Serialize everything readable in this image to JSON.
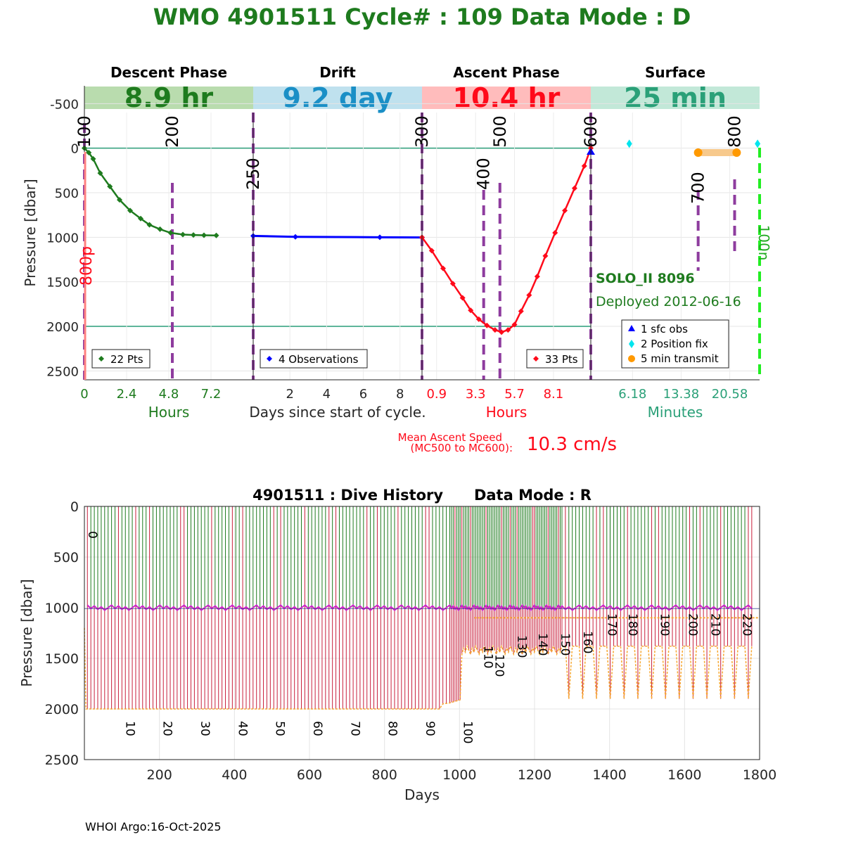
{
  "header": {
    "title": "WMO 4901511   Cycle# : 109   Data Mode : D"
  },
  "phases": [
    {
      "name": "Descent Phase",
      "duration": "8.9 hr",
      "color": "#1e7b1e",
      "bg": "#b9dcae"
    },
    {
      "name": "Drift",
      "duration": "9.2 day",
      "color": "#1a8fc6",
      "bg": "#bfe1ee"
    },
    {
      "name": "Ascent Phase",
      "duration": "10.4 hr",
      "color": "#ff0a1a",
      "bg": "#ffbcbc"
    },
    {
      "name": "Surface",
      "duration": "25 min",
      "color": "#2aa078",
      "bg": "#c2e8d8"
    }
  ],
  "float_info": {
    "model": "SOLO_II 8096",
    "deployed": "Deployed 2012-06-16"
  },
  "ascent_speed": {
    "label_line1": "Mean Ascent Speed",
    "label_line2": "(MC500 to MC600):",
    "value": "10.3 cm/s"
  },
  "footer": "WHOI Argo:16-Oct-2025",
  "colors": {
    "descent": "#1e7b1e",
    "drift": "#0000ff",
    "ascent": "#ff0a1a",
    "surface_obs": "#0000ff",
    "position_fix": "#00e5ee",
    "transmit": "#ff9900",
    "markers": "#8e3c9e",
    "history_top": "#1e7b1e",
    "history_bottom": "#c81f3c",
    "history_park": "#cc22cc",
    "history_profile": "#f7a832"
  },
  "chart_data": [
    {
      "type": "line",
      "title": "",
      "ylabel": "Pressure [dbar]",
      "ylim": [
        2600,
        -700
      ],
      "yticks": [
        -500,
        0,
        500,
        1000,
        1500,
        2000,
        2500
      ],
      "grid": true,
      "reference_lines": [
        0,
        2000
      ],
      "panels": [
        {
          "name": "Descent Phase",
          "xlabel": "Hours",
          "xlim": [
            0,
            9.6
          ],
          "xticks": [
            "0",
            "2.4",
            "4.8",
            "7.2"
          ],
          "xtick_values": [
            0,
            2.4,
            4.8,
            7.2
          ],
          "legend": "22 Pts",
          "series": {
            "x": [
              0,
              0.25,
              0.5,
              0.9,
              1.45,
              2.0,
              2.6,
              3.2,
              3.7,
              4.3,
              4.9,
              5.6,
              6.2,
              6.8,
              7.5
            ],
            "y": [
              0,
              50,
              120,
              280,
              430,
              580,
              700,
              790,
              860,
              910,
              950,
              970,
              975,
              978,
              980
            ]
          },
          "event_markers": [
            {
              "label": "100",
              "x": 0
            },
            {
              "label": "200",
              "x": 5.0
            }
          ]
        },
        {
          "name": "Drift",
          "xlabel": "Days since start of cycle.",
          "xlim": [
            0,
            9.2
          ],
          "xticks": [
            "2",
            "4",
            "6",
            "8"
          ],
          "xtick_values": [
            2,
            4,
            6,
            8
          ],
          "legend": "4 Observations",
          "series": {
            "x": [
              0,
              2.3,
              6.9,
              9.2
            ],
            "y": [
              985,
              995,
              1000,
              1002
            ]
          },
          "event_markers": [
            {
              "label": "250",
              "x": 0
            }
          ]
        },
        {
          "name": "Ascent Phase",
          "xlabel": "Hours",
          "xlim": [
            0,
            10.4
          ],
          "xticks": [
            "0.9",
            "3.3",
            "5.7",
            "8.1"
          ],
          "xtick_values": [
            0.9,
            3.3,
            5.7,
            8.1
          ],
          "legend": "33 Pts",
          "series": {
            "x": [
              0,
              0.6,
              1.3,
              1.9,
              2.5,
              3.0,
              3.5,
              4.0,
              4.5,
              4.9,
              5.3,
              5.7,
              6.1,
              6.6,
              7.1,
              7.6,
              8.2,
              8.8,
              9.4,
              10.0,
              10.4
            ],
            "y": [
              1000,
              1150,
              1350,
              1520,
              1680,
              1820,
              1920,
              1990,
              2040,
              2065,
              2040,
              1980,
              1830,
              1650,
              1440,
              1210,
              950,
              700,
              450,
              200,
              0
            ]
          },
          "event_markers": [
            {
              "label": "300",
              "x": 0
            },
            {
              "label": "400",
              "x": 3.8
            },
            {
              "label": "500",
              "x": 4.8
            },
            {
              "label": "600",
              "x": 10.4
            }
          ]
        },
        {
          "name": "Surface",
          "xlabel": "Minutes",
          "xlim": [
            0,
            25
          ],
          "xticks": [
            "6.18",
            "13.38",
            "20.58"
          ],
          "xtick_values": [
            6.18,
            13.38,
            20.58
          ],
          "legend": [
            "1 sfc obs",
            "2 Position fix",
            "5 min transmit"
          ],
          "position_fix": {
            "x": [
              5.7,
              24.7
            ],
            "y": [
              -50,
              -50
            ]
          },
          "transmit": {
            "x_start": 15.9,
            "x_end": 21.6,
            "y": 50
          },
          "event_markers": [
            {
              "label": "700",
              "x": 15.9
            },
            {
              "label": "800",
              "x": 21.3
            },
            {
              "label": "100n",
              "x": 25.0
            }
          ]
        }
      ],
      "annotations": [
        "800p"
      ]
    },
    {
      "type": "line",
      "title": "4901511 : Dive History      Data Mode : R",
      "xlabel": "Days",
      "ylabel": "Pressure [dbar]",
      "xlim": [
        0,
        1800
      ],
      "ylim": [
        2500,
        0
      ],
      "xticks": [
        200,
        400,
        600,
        800,
        1000,
        1200,
        1400,
        1600,
        1800
      ],
      "yticks": [
        0,
        500,
        1000,
        1500,
        2000,
        2500
      ],
      "grid": true,
      "cycles": 226,
      "cycle_interval_days": 10,
      "park_pressure": 1000,
      "profile_pressure_early": 2000,
      "cycle_labels": [
        {
          "label": "0",
          "day": 0
        },
        {
          "label": "10",
          "day": 100
        },
        {
          "label": "20",
          "day": 200
        },
        {
          "label": "30",
          "day": 300
        },
        {
          "label": "40",
          "day": 400
        },
        {
          "label": "50",
          "day": 500
        },
        {
          "label": "60",
          "day": 600
        },
        {
          "label": "70",
          "day": 700
        },
        {
          "label": "80",
          "day": 800
        },
        {
          "label": "90",
          "day": 900
        },
        {
          "label": "100",
          "day": 1000
        },
        {
          "label": "110",
          "day": 1055
        },
        {
          "label": "120",
          "day": 1085
        },
        {
          "label": "130",
          "day": 1145
        },
        {
          "label": "140",
          "day": 1200
        },
        {
          "label": "150",
          "day": 1260
        },
        {
          "label": "160",
          "day": 1320
        },
        {
          "label": "170",
          "day": 1385
        },
        {
          "label": "180",
          "day": 1440
        },
        {
          "label": "190",
          "day": 1525
        },
        {
          "label": "200",
          "day": 1600
        },
        {
          "label": "210",
          "day": 1660
        },
        {
          "label": "220",
          "day": 1745
        }
      ]
    }
  ]
}
